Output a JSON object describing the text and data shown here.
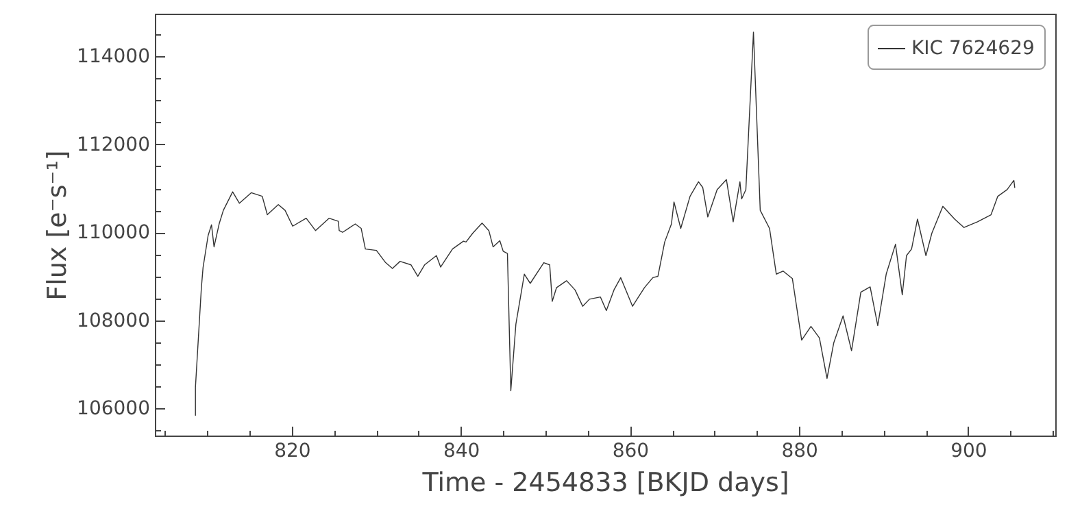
{
  "chart_data": {
    "type": "line",
    "xlabel": "Time - 2454833 [BKJD days]",
    "ylabel": "Flux [e⁻s⁻¹]",
    "xlim": [
      803.8,
      910.3
    ],
    "ylim": [
      105380,
      114970
    ],
    "xticks": [
      {
        "value": 805,
        "label": null
      },
      {
        "value": 810,
        "label": null
      },
      {
        "value": 815,
        "label": null
      },
      820,
      {
        "value": 825,
        "label": null
      },
      {
        "value": 830,
        "label": null
      },
      {
        "value": 835,
        "label": null
      },
      840,
      {
        "value": 845,
        "label": null
      },
      {
        "value": 850,
        "label": null
      },
      {
        "value": 855,
        "label": null
      },
      860,
      {
        "value": 865,
        "label": null
      },
      {
        "value": 870,
        "label": null
      },
      {
        "value": 875,
        "label": null
      },
      880,
      {
        "value": 885,
        "label": null
      },
      {
        "value": 890,
        "label": null
      },
      {
        "value": 895,
        "label": null
      },
      900,
      {
        "value": 905,
        "label": null
      },
      {
        "value": 910,
        "label": null
      }
    ],
    "yticks": [
      {
        "value": 105500,
        "label": null
      },
      106000,
      {
        "value": 106500,
        "label": null
      },
      {
        "value": 107000,
        "label": null
      },
      {
        "value": 107500,
        "label": null
      },
      108000,
      {
        "value": 108500,
        "label": null
      },
      {
        "value": 109000,
        "label": null
      },
      {
        "value": 109500,
        "label": null
      },
      110000,
      {
        "value": 110500,
        "label": null
      },
      {
        "value": 111000,
        "label": null
      },
      {
        "value": 111500,
        "label": null
      },
      112000,
      {
        "value": 112500,
        "label": null
      },
      {
        "value": 113000,
        "label": null
      },
      {
        "value": 113500,
        "label": null
      },
      114000,
      {
        "value": 114500,
        "label": null
      }
    ],
    "legend": "top right",
    "marker": "none",
    "line_style": "solid",
    "series": [
      {
        "name": "KIC 7624629",
        "color": "#333333",
        "x": [
          808.6,
          808.6,
          809.3,
          809.5,
          810.1,
          810.5,
          810.8,
          811.4,
          811.9,
          813.0,
          813.8,
          815.2,
          816.5,
          817.1,
          818.4,
          819.2,
          820.1,
          821.7,
          822.8,
          824.4,
          825.5,
          825.6,
          826.0,
          827.5,
          828.2,
          828.7,
          830.0,
          831.1,
          831.9,
          832.8,
          834.1,
          834.9,
          835.7,
          837.1,
          837.6,
          839.0,
          840.3,
          840.6,
          841.4,
          842.5,
          843.3,
          843.8,
          844.6,
          845.0,
          845.5,
          845.9,
          846.5,
          847.5,
          848.2,
          849.8,
          850.5,
          850.8,
          851.3,
          852.5,
          853.5,
          854.4,
          855.2,
          856.5,
          857.2,
          858.1,
          858.9,
          860.3,
          861.7,
          862.7,
          863.3,
          864.1,
          864.9,
          865.2,
          866.0,
          867.1,
          868.1,
          868.6,
          869.2,
          870.3,
          871.4,
          872.2,
          873.0,
          873.2,
          873.7,
          874.6,
          875.4,
          876.5,
          877.3,
          878.1,
          879.2,
          880.3,
          881.4,
          882.4,
          883.3,
          884.1,
          885.2,
          886.2,
          887.3,
          888.4,
          889.3,
          890.3,
          891.4,
          892.2,
          892.7,
          893.3,
          894.0,
          895.0,
          895.7,
          897.0,
          898.4,
          899.5,
          901.1,
          902.7,
          903.5,
          904.6,
          905.4,
          905.5
        ],
        "values": [
          105840,
          106480,
          108740,
          109200,
          109930,
          110170,
          109670,
          110190,
          110500,
          110920,
          110660,
          110900,
          110820,
          110400,
          110630,
          110500,
          110140,
          110320,
          110040,
          110320,
          110250,
          110040,
          110000,
          110190,
          110090,
          109620,
          109590,
          109310,
          109180,
          109340,
          109260,
          109000,
          109260,
          109470,
          109210,
          109620,
          109800,
          109780,
          109980,
          110210,
          110040,
          109670,
          109810,
          109570,
          109520,
          106400,
          107910,
          109050,
          108840,
          109310,
          109260,
          108430,
          108740,
          108900,
          108690,
          108320,
          108480,
          108530,
          108220,
          108690,
          108970,
          108320,
          108740,
          108970,
          109000,
          109780,
          110190,
          110690,
          110090,
          110820,
          111150,
          111020,
          110350,
          110970,
          111200,
          110240,
          111150,
          110760,
          110970,
          114550,
          110500,
          110090,
          109050,
          109120,
          108950,
          107550,
          107860,
          107600,
          106680,
          107490,
          108100,
          107310,
          108640,
          108760,
          107880,
          109050,
          109730,
          108580,
          109470,
          109620,
          110300,
          109470,
          109980,
          110590,
          110300,
          110110,
          110240,
          110400,
          110820,
          110970,
          111180,
          111020
        ]
      }
    ]
  }
}
